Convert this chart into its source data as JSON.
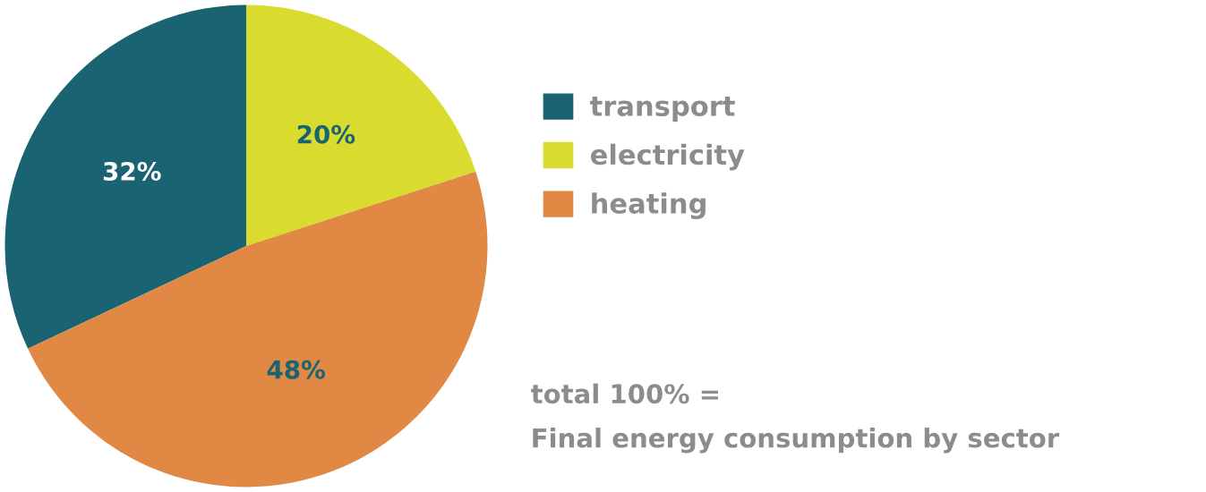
{
  "chart_data": {
    "type": "pie",
    "categories": [
      "transport",
      "electricity",
      "heating"
    ],
    "values": [
      32,
      20,
      48
    ],
    "colors": [
      "#1a6373",
      "#d9dc2e",
      "#e08844"
    ],
    "data_labels": true,
    "value_labels": [
      "32%",
      "20%",
      "48%"
    ],
    "legend": "right",
    "annotations": [
      "total 100% =",
      "Final energy consumption by sector"
    ]
  }
}
